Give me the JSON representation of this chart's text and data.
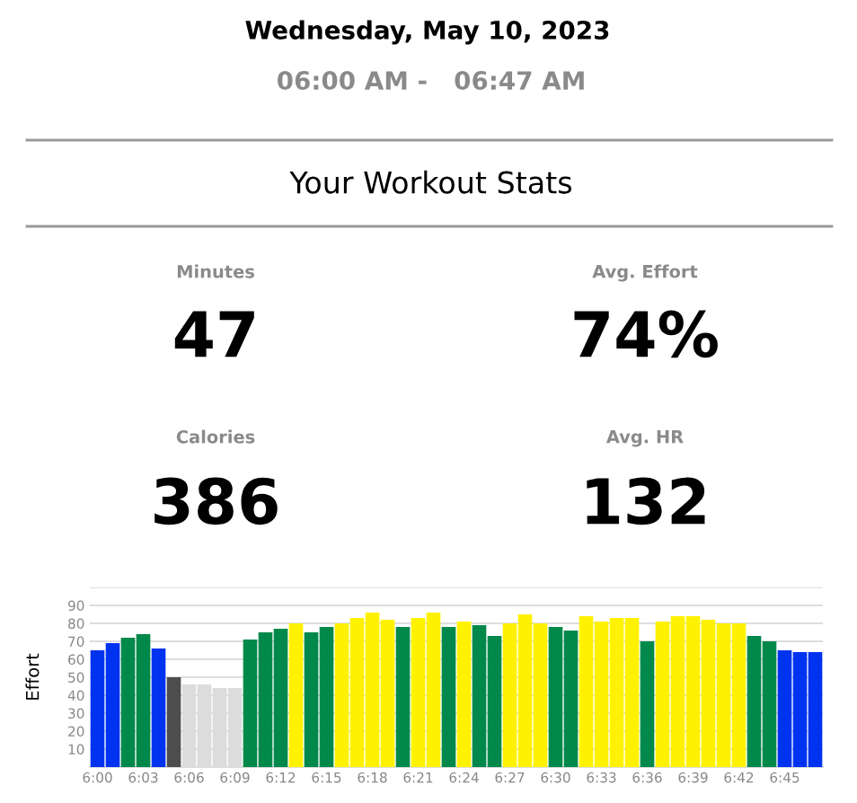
{
  "chart_data": [
    {
      "type": "other",
      "title": "Wednesday, May 10, 2023",
      "subtitle": "06:00 AM -   06:47 AM",
      "annotations": [
        "Your Workout Stats",
        "Minutes",
        "47",
        "Avg. Effort",
        "74%",
        "Calories",
        "386",
        "Avg. HR",
        "132"
      ]
    },
    {
      "type": "bar",
      "ylabel": "Effort",
      "categories": [
        "6:00",
        null,
        null,
        "6:03",
        null,
        null,
        "6:06",
        null,
        null,
        "6:09",
        null,
        null,
        "6:12",
        null,
        null,
        "6:15",
        null,
        null,
        "6:18",
        null,
        null,
        "6:21",
        null,
        null,
        "6:24",
        null,
        null,
        "6:27",
        null,
        null,
        "6:30",
        null,
        null,
        "6:33",
        null,
        null,
        "6:36",
        null,
        null,
        "6:39",
        null,
        null,
        "6:42",
        null,
        null,
        "6:45",
        null,
        null
      ],
      "values": [
        65,
        69,
        72,
        74,
        66,
        50,
        46,
        46,
        44,
        44,
        71,
        75,
        77,
        80,
        75,
        78,
        80,
        83,
        86,
        82,
        78,
        83,
        86,
        78,
        81,
        79,
        73,
        80,
        85,
        80,
        78,
        76,
        84,
        81,
        83,
        83,
        70,
        81,
        84,
        84,
        82,
        80,
        80,
        73,
        70,
        65,
        64,
        64
      ],
      "colors": [
        "#0033f0",
        "#0033f0",
        "#00894a",
        "#00894a",
        "#0033f0",
        "#4d4d4d",
        "#dcdcdc",
        "#dcdcdc",
        "#dcdcdc",
        "#dcdcdc",
        "#00894a",
        "#00894a",
        "#00894a",
        "#fff200",
        "#00894a",
        "#00894a",
        "#fff200",
        "#fff200",
        "#fff200",
        "#fff200",
        "#00894a",
        "#fff200",
        "#fff200",
        "#00894a",
        "#fff200",
        "#00894a",
        "#00894a",
        "#fff200",
        "#fff200",
        "#fff200",
        "#00894a",
        "#00894a",
        "#fff200",
        "#fff200",
        "#fff200",
        "#fff200",
        "#00894a",
        "#fff200",
        "#fff200",
        "#fff200",
        "#fff200",
        "#fff200",
        "#fff200",
        "#00894a",
        "#00894a",
        "#0033f0",
        "#0033f0",
        "#0033f0"
      ],
      "ylim": [
        0,
        100
      ],
      "yticks": [
        10,
        20,
        30,
        40,
        50,
        60,
        70,
        80,
        90,
        {
          "value": 100,
          "label": null
        }
      ],
      "grid": "y",
      "legend": false
    }
  ]
}
